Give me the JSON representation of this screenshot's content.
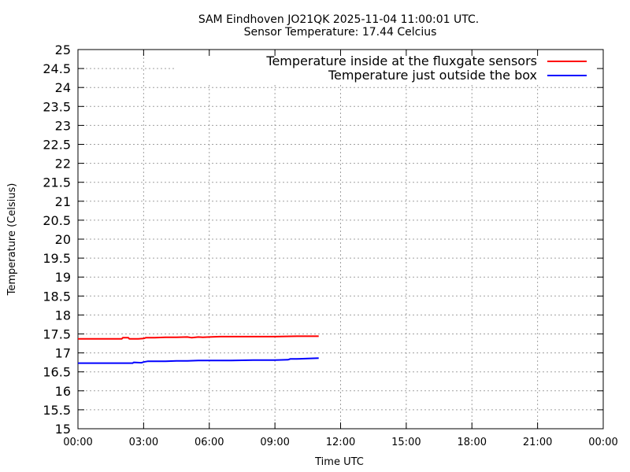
{
  "chart_data": {
    "type": "line",
    "title": "SAM Eindhoven JO21QK 2025-11-04 11:00:01 UTC.",
    "subtitle": "Sensor Temperature: 17.44 Celcius",
    "xlabel": "Time UTC",
    "ylabel": "Temperature (Celsius)",
    "xlim": [
      0,
      24
    ],
    "ylim": [
      15,
      25
    ],
    "x_ticks": [
      0,
      3,
      6,
      9,
      12,
      15,
      18,
      21,
      24
    ],
    "x_tick_labels": [
      "00:00",
      "03:00",
      "06:00",
      "09:00",
      "12:00",
      "15:00",
      "18:00",
      "21:00",
      "00:00"
    ],
    "y_ticks": [
      15,
      15.5,
      16,
      16.5,
      17,
      17.5,
      18,
      18.5,
      19,
      19.5,
      20,
      20.5,
      21,
      21.5,
      22,
      22.5,
      23,
      23.5,
      24,
      24.5,
      25
    ],
    "y_tick_labels": [
      "15",
      "15.5",
      "16",
      "16.5",
      "17",
      "17.5",
      "18",
      "18.5",
      "19",
      "19.5",
      "20",
      "20.5",
      "21",
      "21.5",
      "22",
      "22.5",
      "23",
      "23.5",
      "24",
      "24.5",
      "25"
    ],
    "grid": true,
    "legend_position": "top-right",
    "series": [
      {
        "name": "Temperature inside at the fluxgate sensors",
        "color": "#ff0000",
        "x": [
          0,
          2.0,
          2.05,
          2.3,
          2.35,
          2.75,
          3.0,
          3.1,
          3.5,
          4.0,
          4.5,
          5.0,
          5.2,
          5.5,
          5.7,
          6.0,
          6.5,
          7.0,
          8.0,
          9.0,
          10.0,
          11.0
        ],
        "y": [
          17.37,
          17.37,
          17.4,
          17.4,
          17.37,
          17.37,
          17.38,
          17.4,
          17.4,
          17.41,
          17.41,
          17.42,
          17.4,
          17.42,
          17.41,
          17.42,
          17.43,
          17.43,
          17.43,
          17.43,
          17.44,
          17.44
        ]
      },
      {
        "name": "Temperature just outside the box",
        "color": "#0000ff",
        "x": [
          0,
          2.5,
          2.55,
          2.9,
          3.0,
          3.2,
          3.5,
          4.0,
          4.5,
          5.0,
          5.5,
          6.0,
          7.0,
          8.0,
          9.0,
          9.6,
          9.7,
          10.0,
          10.5,
          11.0
        ],
        "y": [
          16.73,
          16.73,
          16.75,
          16.74,
          16.76,
          16.78,
          16.78,
          16.78,
          16.79,
          16.79,
          16.8,
          16.8,
          16.8,
          16.81,
          16.81,
          16.82,
          16.84,
          16.84,
          16.85,
          16.86
        ]
      }
    ]
  }
}
